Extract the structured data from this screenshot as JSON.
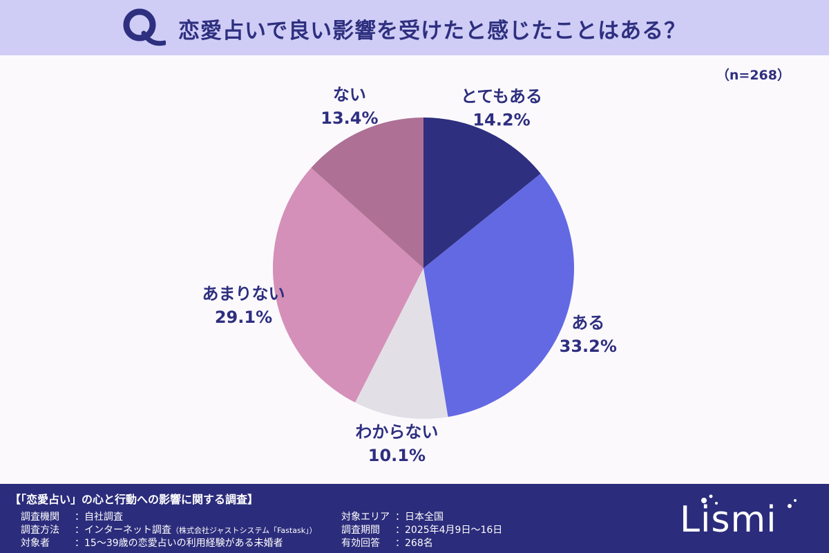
{
  "header": {
    "q_letter": "Q",
    "question": "恋愛占いで良い影響を受けたと感じたことはある？",
    "bg_color": "#cfcdf6"
  },
  "sample_size": "（n=268）",
  "chart_data": {
    "type": "pie",
    "title": "恋愛占いで良い影響を受けたと感じたことはある？",
    "categories": [
      "とてもある",
      "ある",
      "わからない",
      "あまりない",
      "ない"
    ],
    "values": [
      14.2,
      33.2,
      10.1,
      29.1,
      13.4
    ],
    "value_labels": [
      "14.2%",
      "33.2%",
      "10.1%",
      "29.1%",
      "13.4%"
    ],
    "colors": [
      "#2e2f7f",
      "#6369e3",
      "#e2e0e6",
      "#d490b8",
      "#ae7095"
    ],
    "start_angle": "12 o'clock",
    "direction": "clockwise"
  },
  "footer": {
    "survey_title": "【「恋愛占い」の心と行動への影響に関する調査】",
    "rows_left": [
      {
        "label": "調査機関",
        "sep": "：",
        "value": "自社調査",
        "note": ""
      },
      {
        "label": "調査方法",
        "sep": "：",
        "value": "インターネット調査",
        "note": "（株式会社ジャストシステム「Fastask」）"
      },
      {
        "label": "対象者",
        "sep": "：",
        "value": "15～39歳の恋愛占いの利用経験がある未婚者",
        "note": ""
      }
    ],
    "rows_right": [
      {
        "label": "対象エリア",
        "sep": "：",
        "value": "日本全国"
      },
      {
        "label": "調査期間",
        "sep": "：",
        "value": "2025年4月9日～16日"
      },
      {
        "label": "有効回答",
        "sep": "：",
        "value": "268名"
      }
    ],
    "brand": "Lismi",
    "bg_color": "#2c2c7c"
  }
}
